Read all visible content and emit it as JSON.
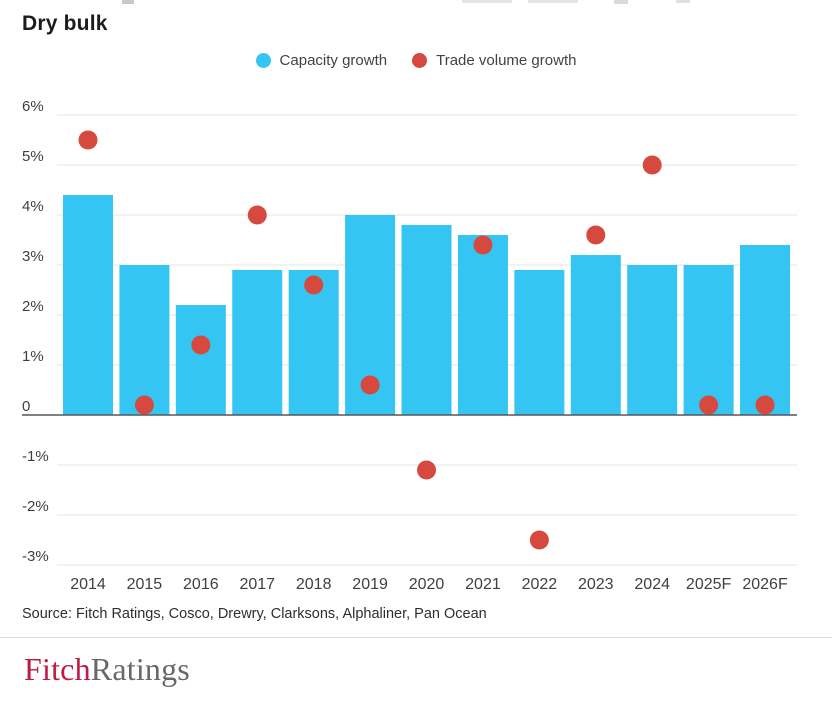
{
  "page": {
    "title": "Dry bulk",
    "source": "Source: Fitch Ratings, Cosco, Drewry, Clarksons, Alphaliner, Pan Ocean",
    "logo": {
      "part1": "Fitch",
      "part2": "Ratings"
    }
  },
  "legend": {
    "items": [
      {
        "label": "Capacity growth",
        "marker": "circle-marker-blue",
        "color": "#35c5f3"
      },
      {
        "label": "Trade volume growth",
        "marker": "circle-marker-red",
        "color": "#d6493f"
      }
    ]
  },
  "colors": {
    "bar_blue": "#35c5f3",
    "dot_red": "#d6493f",
    "gridline": "#eaeaea",
    "zero_line": "#56575b",
    "axis_text": "#404040",
    "title_text": "#1c1c1c",
    "logo_red": "#c01a43",
    "logo_gray": "#66686c"
  },
  "chart_data": {
    "type": "bar",
    "title": "Dry bulk",
    "categories": [
      "2014",
      "2015",
      "2016",
      "2017",
      "2018",
      "2019",
      "2020",
      "2021",
      "2022",
      "2023",
      "2024",
      "2025F",
      "2026F"
    ],
    "series": [
      {
        "name": "Capacity growth",
        "type": "bar",
        "color": "#35c5f3",
        "values": [
          4.4,
          3.0,
          2.2,
          2.9,
          2.9,
          4.0,
          3.8,
          3.6,
          2.9,
          3.2,
          3.0,
          3.0,
          3.4
        ]
      },
      {
        "name": "Trade volume growth",
        "type": "scatter",
        "color": "#d6493f",
        "values": [
          5.5,
          0.2,
          1.4,
          4.0,
          2.6,
          0.6,
          -1.1,
          3.4,
          -2.5,
          3.6,
          5.0,
          0.2,
          0.2
        ]
      }
    ],
    "xlabel": "",
    "ylabel": "",
    "ylim": [
      -3,
      6
    ],
    "yticks": [
      6,
      5,
      4,
      3,
      2,
      1,
      0,
      -1,
      -2,
      -3
    ],
    "ytick_labels": [
      "6%",
      "5%",
      "4%",
      "3%",
      "2%",
      "1%",
      "0",
      "-1%",
      "-2%",
      "-3%"
    ],
    "grid": true,
    "legend_position": "top-center"
  }
}
